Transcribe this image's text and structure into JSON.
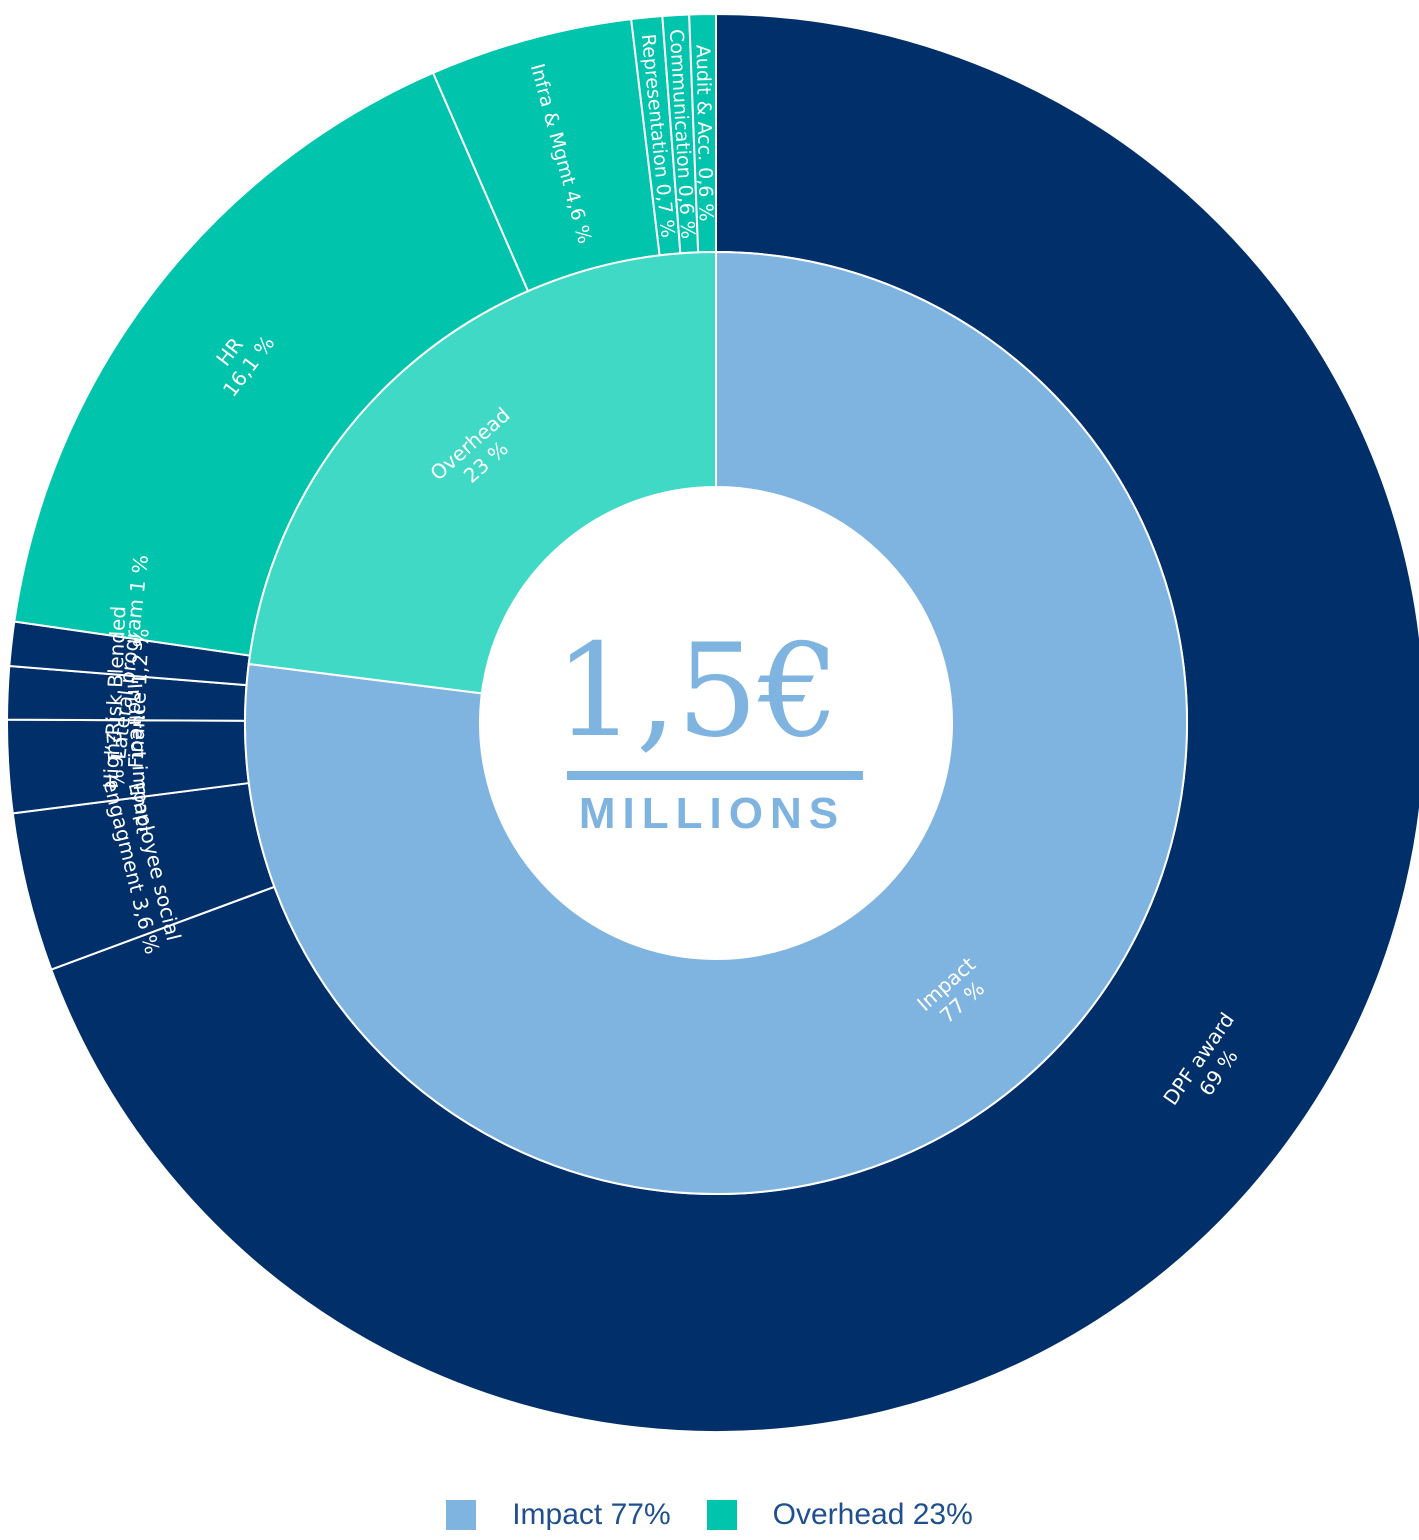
{
  "chart_data": {
    "type": "pie",
    "variant": "sunburst-donut",
    "center": {
      "value": "1,5€",
      "unit": "MILLIONS"
    },
    "inner_ring": [
      {
        "name": "Impact",
        "value": 77,
        "label": [
          "Impact",
          "77 %"
        ],
        "color": "#80b4e0"
      },
      {
        "name": "Overhead",
        "value": 23,
        "label": [
          "Overhead",
          "23 %"
        ],
        "color": "#40d9c6"
      }
    ],
    "outer_ring": [
      {
        "name": "DPF award",
        "value": 69,
        "parent": "Impact",
        "label": [
          "DPF award",
          "69 %"
        ],
        "color": "#002f69",
        "style": "rotated"
      },
      {
        "name": "Employee social engagment",
        "value": 3.6,
        "parent": "Impact",
        "label": [
          "Employee social",
          "engagment 3,6 %"
        ],
        "color": "#002f69",
        "style": "rotated"
      },
      {
        "name": "Indirect impact",
        "value": 2.1,
        "parent": "Impact",
        "label": [
          "Indirect impact",
          "2,1 %"
        ],
        "color": "#002f69",
        "style": "rotated"
      },
      {
        "name": "High-Risk Blended Finance",
        "value": 1.2,
        "parent": "Impact",
        "label": [
          "High-Risk Blended",
          "Finance 1,2 %"
        ],
        "color": "#002f69",
        "style": "rotated"
      },
      {
        "name": "Lateral program",
        "value": 1,
        "parent": "Impact",
        "label": [
          "Lateral program 1 %"
        ],
        "color": "#002f69",
        "style": "rotated"
      },
      {
        "name": "HR",
        "value": 16.1,
        "parent": "Overhead",
        "label": [
          "HR",
          "16,1 %"
        ],
        "color": "#00c4ab",
        "style": "rotated"
      },
      {
        "name": "Infra & Mgmt",
        "value": 4.6,
        "parent": "Overhead",
        "label": [
          "Infra & Mgmt 4,6 %"
        ],
        "color": "#00c4ab",
        "style": "radial"
      },
      {
        "name": "Representation",
        "value": 0.7,
        "parent": "Overhead",
        "label": [
          "Representation 0,7 %"
        ],
        "color": "#00c4ab",
        "style": "radial"
      },
      {
        "name": "Communication",
        "value": 0.6,
        "parent": "Overhead",
        "label": [
          "Communication 0,6 %"
        ],
        "color": "#00c4ab",
        "style": "radial"
      },
      {
        "name": "Audit & Acc.",
        "value": 0.6,
        "parent": "Overhead",
        "label": [
          "Audit & Acc. 0,6 %"
        ],
        "color": "#00c4ab",
        "style": "radial"
      }
    ],
    "legend": [
      {
        "label": "Impact 77%",
        "color": "#80b4e0"
      },
      {
        "label": "Overhead 23%",
        "color": "#00c4ab"
      }
    ],
    "center_color": "#80b4e0"
  }
}
